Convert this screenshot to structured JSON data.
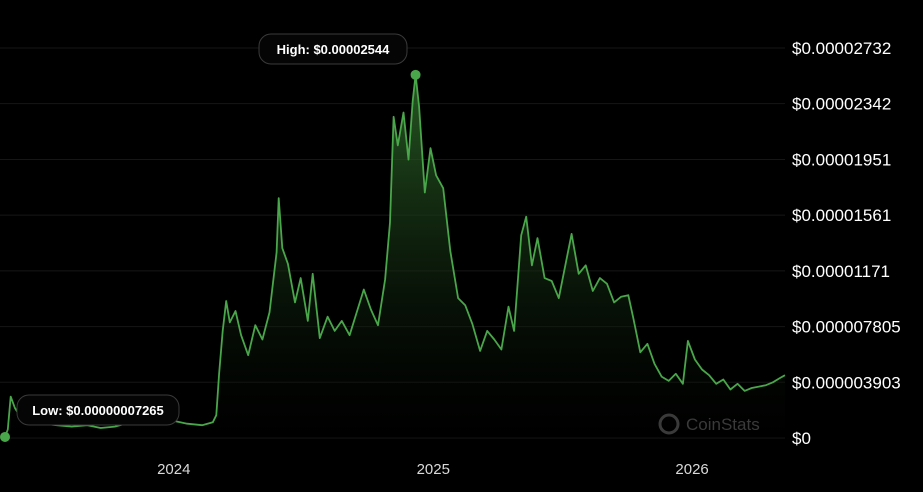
{
  "chart_data": {
    "type": "area",
    "y_tick_labels": [
      "$0.00002732",
      "$0.00002342",
      "$0.00001951",
      "$0.00001561",
      "$0.00001171",
      "$0.000007805",
      "$0.000003903",
      "$0"
    ],
    "y_tick_values": [
      2.732e-05,
      2.342e-05,
      1.951e-05,
      1.561e-05,
      1.171e-05,
      7.805e-06,
      3.903e-06,
      0
    ],
    "x_tick_labels": [
      "2024",
      "2025",
      "2026"
    ],
    "ylim": [
      0,
      2.732e-05
    ],
    "grid": true,
    "high": {
      "label": "High: $0.00002544",
      "date": "2024-12-07",
      "value": 2.544e-05
    },
    "low": {
      "label": "Low: $0.00000007265",
      "date": "2023-05-08",
      "value": 7.265e-08
    },
    "series": [
      {
        "values": [
          [
            "2023-05-08",
            7e-08
          ],
          [
            "2023-05-12",
            6e-07
          ],
          [
            "2023-05-16",
            2.9e-06
          ],
          [
            "2023-05-22",
            2.1e-06
          ],
          [
            "2023-06-01",
            1.3e-06
          ],
          [
            "2023-06-15",
            1.1e-06
          ],
          [
            "2023-07-01",
            1e-06
          ],
          [
            "2023-07-20",
            9e-07
          ],
          [
            "2023-08-10",
            8e-07
          ],
          [
            "2023-09-01",
            9e-07
          ],
          [
            "2023-09-20",
            7e-07
          ],
          [
            "2023-10-10",
            8e-07
          ],
          [
            "2023-11-01",
            1.1e-06
          ],
          [
            "2023-11-20",
            1.2e-06
          ],
          [
            "2023-12-10",
            1.3e-06
          ],
          [
            "2024-01-01",
            1.2e-06
          ],
          [
            "2024-01-20",
            1e-06
          ],
          [
            "2024-02-10",
            9e-07
          ],
          [
            "2024-02-25",
            1.1e-06
          ],
          [
            "2024-03-01",
            1.6e-06
          ],
          [
            "2024-03-05",
            4.5e-06
          ],
          [
            "2024-03-10",
            7.5e-06
          ],
          [
            "2024-03-15",
            9.6e-06
          ],
          [
            "2024-03-20",
            8.1e-06
          ],
          [
            "2024-03-28",
            8.9e-06
          ],
          [
            "2024-04-05",
            7.2e-06
          ],
          [
            "2024-04-15",
            5.8e-06
          ],
          [
            "2024-04-25",
            7.9e-06
          ],
          [
            "2024-05-05",
            6.9e-06
          ],
          [
            "2024-05-15",
            8.8e-06
          ],
          [
            "2024-05-25",
            1.3e-05
          ],
          [
            "2024-05-28",
            1.68e-05
          ],
          [
            "2024-06-02",
            1.33e-05
          ],
          [
            "2024-06-10",
            1.22e-05
          ],
          [
            "2024-06-20",
            9.5e-06
          ],
          [
            "2024-06-28",
            1.12e-05
          ],
          [
            "2024-07-08",
            8.2e-06
          ],
          [
            "2024-07-15",
            1.15e-05
          ],
          [
            "2024-07-25",
            7e-06
          ],
          [
            "2024-08-05",
            8.5e-06
          ],
          [
            "2024-08-15",
            7.5e-06
          ],
          [
            "2024-08-25",
            8.2e-06
          ],
          [
            "2024-09-05",
            7.2e-06
          ],
          [
            "2024-09-15",
            8.8e-06
          ],
          [
            "2024-09-25",
            1.04e-05
          ],
          [
            "2024-10-05",
            9e-06
          ],
          [
            "2024-10-15",
            7.9e-06
          ],
          [
            "2024-10-25",
            1.11e-05
          ],
          [
            "2024-11-01",
            1.51e-05
          ],
          [
            "2024-11-06",
            2.25e-05
          ],
          [
            "2024-11-12",
            2.05e-05
          ],
          [
            "2024-11-20",
            2.28e-05
          ],
          [
            "2024-11-27",
            1.95e-05
          ],
          [
            "2024-12-03",
            2.36e-05
          ],
          [
            "2024-12-07",
            2.544e-05
          ],
          [
            "2024-12-12",
            2.32e-05
          ],
          [
            "2024-12-20",
            1.72e-05
          ],
          [
            "2024-12-28",
            2.03e-05
          ],
          [
            "2025-01-05",
            1.84e-05
          ],
          [
            "2025-01-15",
            1.75e-05
          ],
          [
            "2025-01-25",
            1.31e-05
          ],
          [
            "2025-02-05",
            9.8e-06
          ],
          [
            "2025-02-15",
            9.3e-06
          ],
          [
            "2025-02-25",
            8e-06
          ],
          [
            "2025-03-08",
            6.1e-06
          ],
          [
            "2025-03-18",
            7.5e-06
          ],
          [
            "2025-03-28",
            6.9e-06
          ],
          [
            "2025-04-07",
            6.2e-06
          ],
          [
            "2025-04-17",
            9.2e-06
          ],
          [
            "2025-04-25",
            7.5e-06
          ],
          [
            "2025-05-05",
            1.42e-05
          ],
          [
            "2025-05-12",
            1.55e-05
          ],
          [
            "2025-05-20",
            1.21e-05
          ],
          [
            "2025-05-28",
            1.4e-05
          ],
          [
            "2025-06-07",
            1.12e-05
          ],
          [
            "2025-06-17",
            1.1e-05
          ],
          [
            "2025-06-27",
            9.8e-06
          ],
          [
            "2025-07-07",
            1.23e-05
          ],
          [
            "2025-07-15",
            1.43e-05
          ],
          [
            "2025-07-25",
            1.15e-05
          ],
          [
            "2025-08-04",
            1.21e-05
          ],
          [
            "2025-08-14",
            1.03e-05
          ],
          [
            "2025-08-24",
            1.12e-05
          ],
          [
            "2025-09-03",
            1.08e-05
          ],
          [
            "2025-09-13",
            9.5e-06
          ],
          [
            "2025-09-23",
            9.9e-06
          ],
          [
            "2025-10-03",
            1e-05
          ],
          [
            "2025-10-10",
            8.4e-06
          ],
          [
            "2025-10-20",
            6e-06
          ],
          [
            "2025-10-30",
            6.6e-06
          ],
          [
            "2025-11-09",
            5.2e-06
          ],
          [
            "2025-11-19",
            4.3e-06
          ],
          [
            "2025-11-29",
            4e-06
          ],
          [
            "2025-12-09",
            4.5e-06
          ],
          [
            "2025-12-19",
            3.8e-06
          ],
          [
            "2025-12-26",
            6.8e-06
          ],
          [
            "2026-01-05",
            5.5e-06
          ],
          [
            "2026-01-15",
            4.8e-06
          ],
          [
            "2026-01-25",
            4.4e-06
          ],
          [
            "2026-02-04",
            3.8e-06
          ],
          [
            "2026-02-14",
            4.1e-06
          ],
          [
            "2026-02-24",
            3.4e-06
          ],
          [
            "2026-03-06",
            3.8e-06
          ],
          [
            "2026-03-16",
            3.3e-06
          ],
          [
            "2026-03-26",
            3.5e-06
          ],
          [
            "2026-04-05",
            3.6e-06
          ],
          [
            "2026-04-15",
            3.7e-06
          ],
          [
            "2026-04-25",
            3.9e-06
          ],
          [
            "2026-05-05",
            4.2e-06
          ],
          [
            "2026-05-12",
            4.4e-06
          ]
        ]
      }
    ]
  },
  "watermark": {
    "text": "CoinStats"
  },
  "colors": {
    "line": "#4aa64a",
    "fill_top": "#2f6a2a",
    "fill_bottom": "#000000",
    "grid": "#161616",
    "callout_border": "#3a3a3a",
    "callout_bg": "#050505"
  }
}
